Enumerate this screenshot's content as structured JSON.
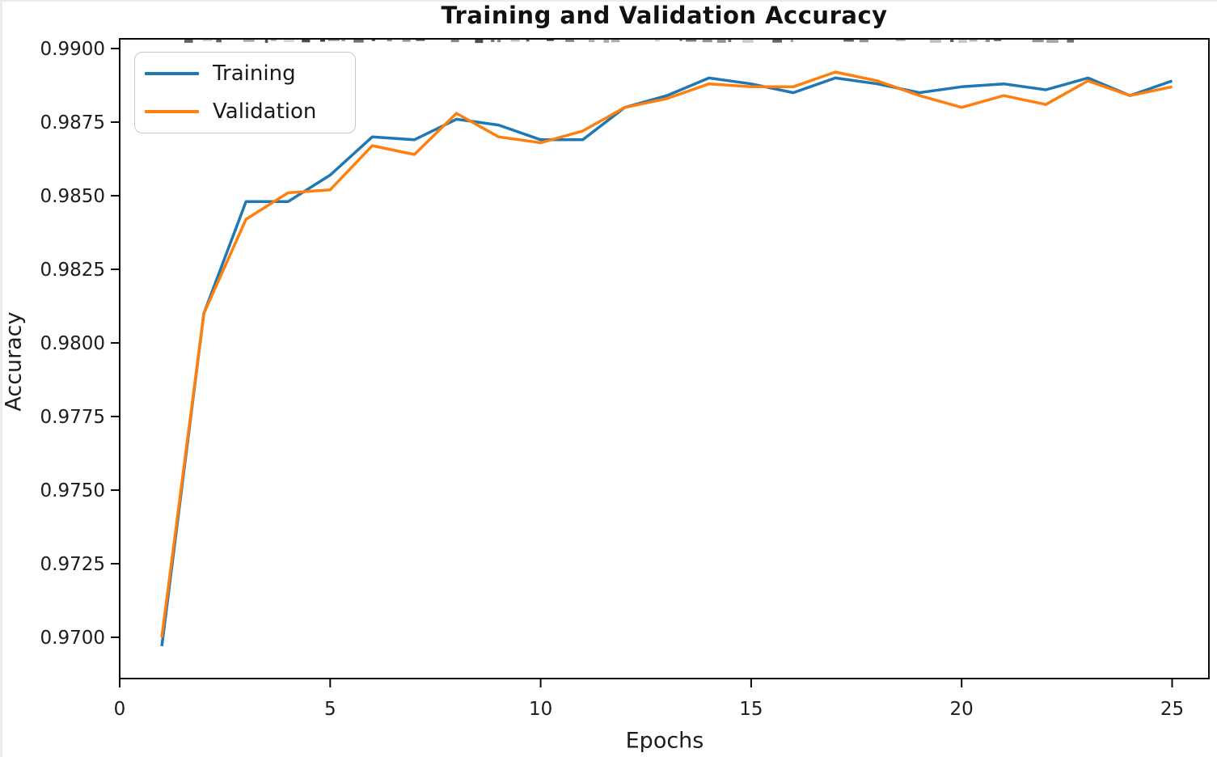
{
  "chart_data": {
    "type": "line",
    "title": "Training and Validation Accuracy",
    "xlabel": "Epochs",
    "ylabel": "Accuracy",
    "x": [
      1,
      2,
      3,
      4,
      5,
      6,
      7,
      8,
      9,
      10,
      11,
      12,
      13,
      14,
      15,
      16,
      17,
      18,
      19,
      20,
      21,
      22,
      23,
      24,
      25
    ],
    "series": [
      {
        "name": "Training",
        "color": "#1f77b4",
        "values": [
          0.9697,
          0.981,
          0.9848,
          0.9848,
          0.9857,
          0.987,
          0.9869,
          0.9876,
          0.9874,
          0.9869,
          0.9869,
          0.988,
          0.9884,
          0.989,
          0.9888,
          0.9885,
          0.989,
          0.9888,
          0.9885,
          0.9887,
          0.9888,
          0.9886,
          0.989,
          0.9884,
          0.9889
        ]
      },
      {
        "name": "Validation",
        "color": "#ff7f0e",
        "values": [
          0.97,
          0.981,
          0.9842,
          0.9851,
          0.9852,
          0.9867,
          0.9864,
          0.9878,
          0.987,
          0.9868,
          0.9872,
          0.988,
          0.9883,
          0.9888,
          0.9887,
          0.9887,
          0.9892,
          0.9889,
          0.9884,
          0.988,
          0.9884,
          0.9881,
          0.9889,
          0.9884,
          0.9887
        ]
      }
    ],
    "x_ticks": [
      0,
      5,
      10,
      15,
      20,
      25
    ],
    "x_tick_labels": [
      "0",
      "5",
      "10",
      "15",
      "20",
      "25"
    ],
    "y_ticks": [
      0.99,
      0.9875,
      0.985,
      0.9825,
      0.98,
      0.9775,
      0.975,
      0.9725,
      0.97
    ],
    "y_tick_labels": [
      "0.9900",
      "0.9875",
      "0.9850",
      "0.9825",
      "0.9800",
      "0.9775",
      "0.9750",
      "0.9725",
      "0.9700"
    ],
    "xlim": [
      0,
      25.88
    ],
    "ylim": [
      0.9686,
      0.9903
    ],
    "grid": false,
    "legend": {
      "position": "upper-left"
    },
    "axis_color": "#0a0a0a",
    "text_color": "#1c1c1c"
  }
}
